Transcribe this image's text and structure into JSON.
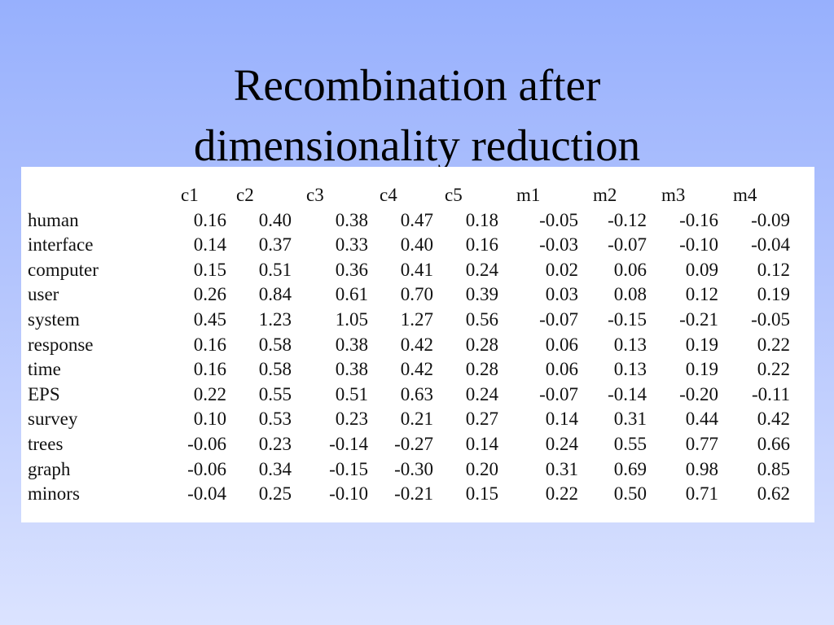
{
  "title": {
    "line1": "Recombination after",
    "line2": "dimensionality reduction"
  },
  "table": {
    "columns": [
      "",
      "c1",
      "c2",
      "c3",
      "c4",
      "c5",
      "m1",
      "m2",
      "m3",
      "m4"
    ],
    "rows": [
      [
        "human",
        "0.16",
        "0.40",
        "0.38",
        "0.47",
        "0.18",
        "-0.05",
        "-0.12",
        "-0.16",
        "-0.09"
      ],
      [
        "interface",
        "0.14",
        "0.37",
        "0.33",
        "0.40",
        "0.16",
        "-0.03",
        "-0.07",
        "-0.10",
        "-0.04"
      ],
      [
        "computer",
        "0.15",
        "0.51",
        "0.36",
        "0.41",
        "0.24",
        "0.02",
        "0.06",
        "0.09",
        "0.12"
      ],
      [
        "user",
        "0.26",
        "0.84",
        "0.61",
        "0.70",
        "0.39",
        "0.03",
        "0.08",
        "0.12",
        "0.19"
      ],
      [
        "system",
        "0.45",
        "1.23",
        "1.05",
        "1.27",
        "0.56",
        "-0.07",
        "-0.15",
        "-0.21",
        "-0.05"
      ],
      [
        "response",
        "0.16",
        "0.58",
        "0.38",
        "0.42",
        "0.28",
        "0.06",
        "0.13",
        "0.19",
        "0.22"
      ],
      [
        "time",
        "0.16",
        "0.58",
        "0.38",
        "0.42",
        "0.28",
        "0.06",
        "0.13",
        "0.19",
        "0.22"
      ],
      [
        "EPS",
        "0.22",
        "0.55",
        "0.51",
        "0.63",
        "0.24",
        "-0.07",
        "-0.14",
        "-0.20",
        "-0.11"
      ],
      [
        "survey",
        "0.10",
        "0.53",
        "0.23",
        "0.21",
        "0.27",
        "0.14",
        "0.31",
        "0.44",
        "0.42"
      ],
      [
        "trees",
        "-0.06",
        "0.23",
        "-0.14",
        "-0.27",
        "0.14",
        "0.24",
        "0.55",
        "0.77",
        "0.66"
      ],
      [
        "graph",
        "-0.06",
        "0.34",
        "-0.15",
        "-0.30",
        "0.20",
        "0.31",
        "0.69",
        "0.98",
        "0.85"
      ],
      [
        "minors",
        "-0.04",
        "0.25",
        "-0.10",
        "-0.21",
        "0.15",
        "0.22",
        "0.50",
        "0.71",
        "0.62"
      ]
    ]
  },
  "colors": {
    "background_top": "#97b0fd",
    "background_bottom": "#dbe3ff",
    "panel": "#ffffff",
    "text": "#000000"
  }
}
